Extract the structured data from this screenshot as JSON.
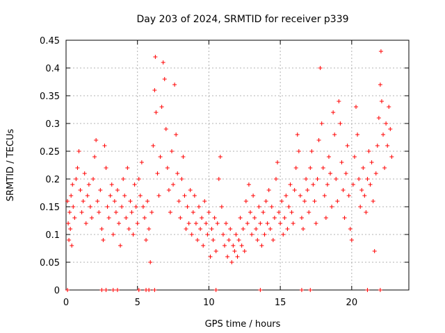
{
  "chart_data": {
    "type": "scatter",
    "title": "Day 203 of 2024, SRMTID for receiver p339",
    "xlabel": "GPS time / hours",
    "ylabel": "SRMTID / TECUs",
    "xlim": [
      0,
      24
    ],
    "ylim": [
      0,
      0.45
    ],
    "x_ticks": [
      0,
      5,
      10,
      15,
      20
    ],
    "y_ticks": [
      0,
      0.05,
      0.1,
      0.15,
      0.2,
      0.25,
      0.3,
      0.35,
      0.4,
      0.45
    ],
    "x_tick_labels": [
      "0",
      "5",
      "10",
      "15",
      "20"
    ],
    "y_tick_labels": [
      "0",
      "0.05",
      "0.1",
      "0.15",
      "0.2",
      "0.25",
      "0.3",
      "0.35",
      "0.4",
      "0.45"
    ],
    "grid": true,
    "marker": "+",
    "color": "#ff0000",
    "series": [
      {
        "name": "SRMTID",
        "points": [
          [
            0.1,
            0.16
          ],
          [
            0.15,
            0.12
          ],
          [
            0.2,
            0.09
          ],
          [
            0.25,
            0.14
          ],
          [
            0.3,
            0.11
          ],
          [
            0.35,
            0.17
          ],
          [
            0.4,
            0.08
          ],
          [
            0.45,
            0.19
          ],
          [
            0.5,
            0.15
          ],
          [
            0.6,
            0.13
          ],
          [
            0.7,
            0.2
          ],
          [
            0.8,
            0.22
          ],
          [
            0.9,
            0.25
          ],
          [
            1.0,
            0.18
          ],
          [
            1.1,
            0.14
          ],
          [
            1.2,
            0.16
          ],
          [
            1.3,
            0.21
          ],
          [
            1.4,
            0.12
          ],
          [
            1.5,
            0.17
          ],
          [
            1.6,
            0.19
          ],
          [
            1.7,
            0.15
          ],
          [
            1.8,
            0.13
          ],
          [
            1.9,
            0.2
          ],
          [
            2.0,
            0.24
          ],
          [
            2.1,
            0.27
          ],
          [
            2.2,
            0.16
          ],
          [
            2.3,
            0.14
          ],
          [
            2.4,
            0.18
          ],
          [
            2.5,
            0.11
          ],
          [
            2.6,
            0.09
          ],
          [
            2.7,
            0.26
          ],
          [
            2.8,
            0.22
          ],
          [
            2.9,
            0.15
          ],
          [
            3.0,
            0.13
          ],
          [
            3.1,
            0.17
          ],
          [
            3.2,
            0.19
          ],
          [
            3.3,
            0.1
          ],
          [
            3.4,
            0.16
          ],
          [
            3.5,
            0.14
          ],
          [
            3.6,
            0.18
          ],
          [
            3.7,
            0.12
          ],
          [
            3.8,
            0.08
          ],
          [
            3.9,
            0.15
          ],
          [
            4.0,
            0.2
          ],
          [
            4.1,
            0.17
          ],
          [
            4.2,
            0.13
          ],
          [
            4.3,
            0.22
          ],
          [
            4.4,
            0.11
          ],
          [
            4.5,
            0.16
          ],
          [
            4.6,
            0.14
          ],
          [
            4.7,
            0.1
          ],
          [
            4.8,
            0.19
          ],
          [
            4.9,
            0.15
          ],
          [
            5.0,
            0.12
          ],
          [
            5.1,
            0.2
          ],
          [
            5.2,
            0.17
          ],
          [
            5.3,
            0.23
          ],
          [
            5.4,
            0.15
          ],
          [
            5.5,
            0.13
          ],
          [
            5.6,
            0.09
          ],
          [
            5.7,
            0.16
          ],
          [
            5.8,
            0.11
          ],
          [
            5.9,
            0.05
          ],
          [
            6.0,
            0.14
          ],
          [
            6.1,
            0.26
          ],
          [
            6.2,
            0.36
          ],
          [
            6.25,
            0.42
          ],
          [
            6.3,
            0.32
          ],
          [
            6.4,
            0.21
          ],
          [
            6.5,
            0.17
          ],
          [
            6.6,
            0.24
          ],
          [
            6.7,
            0.33
          ],
          [
            6.8,
            0.41
          ],
          [
            6.9,
            0.38
          ],
          [
            7.0,
            0.29
          ],
          [
            7.1,
            0.22
          ],
          [
            7.2,
            0.18
          ],
          [
            7.3,
            0.14
          ],
          [
            7.4,
            0.25
          ],
          [
            7.5,
            0.19
          ],
          [
            7.6,
            0.37
          ],
          [
            7.7,
            0.28
          ],
          [
            7.8,
            0.21
          ],
          [
            7.9,
            0.16
          ],
          [
            8.0,
            0.13
          ],
          [
            8.1,
            0.2
          ],
          [
            8.2,
            0.24
          ],
          [
            8.3,
            0.17
          ],
          [
            8.4,
            0.11
          ],
          [
            8.5,
            0.15
          ],
          [
            8.6,
            0.12
          ],
          [
            8.7,
            0.18
          ],
          [
            8.8,
            0.1
          ],
          [
            8.9,
            0.14
          ],
          [
            9.0,
            0.17
          ],
          [
            9.1,
            0.12
          ],
          [
            9.2,
            0.09
          ],
          [
            9.3,
            0.15
          ],
          [
            9.4,
            0.11
          ],
          [
            9.5,
            0.13
          ],
          [
            9.6,
            0.08
          ],
          [
            9.7,
            0.16
          ],
          [
            9.8,
            0.12
          ],
          [
            9.9,
            0.1
          ],
          [
            10.0,
            0.14
          ],
          [
            10.1,
            0.06
          ],
          [
            10.2,
            0.11
          ],
          [
            10.3,
            0.09
          ],
          [
            10.4,
            0.13
          ],
          [
            10.5,
            0.07
          ],
          [
            10.6,
            0.12
          ],
          [
            10.7,
            0.2
          ],
          [
            10.8,
            0.24
          ],
          [
            10.9,
            0.15
          ],
          [
            11.0,
            0.1
          ],
          [
            11.1,
            0.08
          ],
          [
            11.2,
            0.12
          ],
          [
            11.3,
            0.06
          ],
          [
            11.4,
            0.09
          ],
          [
            11.5,
            0.11
          ],
          [
            11.6,
            0.05
          ],
          [
            11.7,
            0.08
          ],
          [
            11.8,
            0.07
          ],
          [
            11.9,
            0.1
          ],
          [
            12.0,
            0.06
          ],
          [
            12.1,
            0.09
          ],
          [
            12.2,
            0.13
          ],
          [
            12.3,
            0.08
          ],
          [
            12.4,
            0.11
          ],
          [
            12.5,
            0.07
          ],
          [
            12.6,
            0.16
          ],
          [
            12.7,
            0.12
          ],
          [
            12.8,
            0.19
          ],
          [
            12.9,
            0.14
          ],
          [
            13.0,
            0.1
          ],
          [
            13.1,
            0.17
          ],
          [
            13.2,
            0.13
          ],
          [
            13.3,
            0.11
          ],
          [
            13.4,
            0.09
          ],
          [
            13.5,
            0.15
          ],
          [
            13.6,
            0.12
          ],
          [
            13.7,
            0.08
          ],
          [
            13.8,
            0.14
          ],
          [
            13.9,
            0.1
          ],
          [
            14.0,
            0.16
          ],
          [
            14.1,
            0.12
          ],
          [
            14.2,
            0.18
          ],
          [
            14.3,
            0.11
          ],
          [
            14.4,
            0.15
          ],
          [
            14.5,
            0.09
          ],
          [
            14.6,
            0.13
          ],
          [
            14.7,
            0.2
          ],
          [
            14.8,
            0.23
          ],
          [
            14.9,
            0.14
          ],
          [
            15.0,
            0.12
          ],
          [
            15.1,
            0.16
          ],
          [
            15.2,
            0.1
          ],
          [
            15.3,
            0.13
          ],
          [
            15.4,
            0.17
          ],
          [
            15.5,
            0.11
          ],
          [
            15.6,
            0.15
          ],
          [
            15.7,
            0.19
          ],
          [
            15.8,
            0.14
          ],
          [
            15.9,
            0.12
          ],
          [
            16.0,
            0.18
          ],
          [
            16.1,
            0.22
          ],
          [
            16.2,
            0.28
          ],
          [
            16.3,
            0.25
          ],
          [
            16.4,
            0.17
          ],
          [
            16.5,
            0.13
          ],
          [
            16.6,
            0.11
          ],
          [
            16.7,
            0.16
          ],
          [
            16.8,
            0.2
          ],
          [
            16.9,
            0.18
          ],
          [
            17.0,
            0.14
          ],
          [
            17.1,
            0.22
          ],
          [
            17.2,
            0.25
          ],
          [
            17.3,
            0.19
          ],
          [
            17.4,
            0.16
          ],
          [
            17.5,
            0.12
          ],
          [
            17.6,
            0.2
          ],
          [
            17.7,
            0.27
          ],
          [
            17.8,
            0.4
          ],
          [
            17.9,
            0.3
          ],
          [
            18.0,
            0.22
          ],
          [
            18.1,
            0.17
          ],
          [
            18.2,
            0.13
          ],
          [
            18.3,
            0.19
          ],
          [
            18.4,
            0.24
          ],
          [
            18.5,
            0.21
          ],
          [
            18.6,
            0.15
          ],
          [
            18.7,
            0.32
          ],
          [
            18.8,
            0.28
          ],
          [
            18.9,
            0.2
          ],
          [
            19.0,
            0.16
          ],
          [
            19.1,
            0.34
          ],
          [
            19.2,
            0.3
          ],
          [
            19.3,
            0.23
          ],
          [
            19.4,
            0.18
          ],
          [
            19.5,
            0.13
          ],
          [
            19.6,
            0.21
          ],
          [
            19.7,
            0.26
          ],
          [
            19.8,
            0.17
          ],
          [
            19.9,
            0.11
          ],
          [
            20.0,
            0.09
          ],
          [
            20.1,
            0.19
          ],
          [
            20.2,
            0.24
          ],
          [
            20.3,
            0.33
          ],
          [
            20.4,
            0.28
          ],
          [
            20.5,
            0.2
          ],
          [
            20.6,
            0.15
          ],
          [
            20.7,
            0.18
          ],
          [
            20.8,
            0.22
          ],
          [
            20.9,
            0.17
          ],
          [
            21.0,
            0.14
          ],
          [
            21.1,
            0.2
          ],
          [
            21.2,
            0.25
          ],
          [
            21.3,
            0.19
          ],
          [
            21.4,
            0.23
          ],
          [
            21.5,
            0.16
          ],
          [
            21.6,
            0.07
          ],
          [
            21.7,
            0.21
          ],
          [
            21.8,
            0.26
          ],
          [
            21.9,
            0.31
          ],
          [
            22.0,
            0.37
          ],
          [
            22.05,
            0.43
          ],
          [
            22.1,
            0.34
          ],
          [
            22.2,
            0.28
          ],
          [
            22.3,
            0.22
          ],
          [
            22.4,
            0.3
          ],
          [
            22.5,
            0.26
          ],
          [
            22.6,
            0.33
          ],
          [
            22.7,
            0.29
          ],
          [
            22.8,
            0.24
          ]
        ],
        "zero_markers_x": [
          0.1,
          2.5,
          2.8,
          3.3,
          3.6,
          5.1,
          5.6,
          5.8,
          6.2,
          10.5,
          13.6,
          16.5,
          17.1,
          21.1,
          22.0
        ]
      }
    ]
  }
}
